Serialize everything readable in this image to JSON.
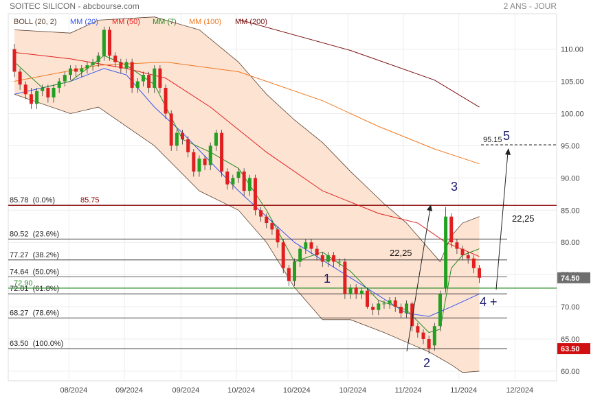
{
  "chart_data": {
    "type": "candlestick",
    "title": "SOITEC SILICON - abcbourse.com",
    "subtitle": "2 ANS - JOUR",
    "up_color": "#22a022",
    "down_color": "#e02020",
    "x": [
      0,
      1,
      2,
      3,
      4,
      5,
      6,
      7,
      8,
      9,
      10,
      11,
      12,
      13,
      14,
      15,
      16,
      17,
      18,
      19,
      20,
      21,
      22,
      23,
      24,
      25,
      26,
      27,
      28,
      29,
      30,
      31,
      32,
      33,
      34,
      35,
      36,
      37,
      38,
      39,
      40,
      41,
      42,
      43,
      44,
      45,
      46,
      47,
      48,
      49,
      50,
      51,
      52,
      53,
      54,
      55,
      56,
      57,
      58,
      59,
      60,
      61,
      62,
      63,
      64,
      65,
      66,
      67,
      68,
      69,
      70,
      71,
      72,
      73,
      74,
      75,
      76,
      77,
      78,
      79,
      80,
      81,
      82,
      83
    ],
    "open": [
      110,
      106.5,
      104.5,
      103,
      101.5,
      103.5,
      104,
      102.5,
      104,
      105,
      106,
      107,
      106.5,
      107,
      107.5,
      108,
      109,
      113,
      109,
      108,
      107,
      108,
      104,
      105,
      106,
      104,
      107,
      104,
      100,
      95,
      97,
      96,
      94,
      91,
      93,
      92,
      95,
      97,
      91,
      89,
      90,
      91,
      88,
      90,
      85,
      84,
      83,
      82,
      80,
      76,
      74,
      77,
      79,
      80,
      79,
      78,
      77,
      78,
      77,
      77,
      72,
      73,
      72,
      72.5,
      70,
      69.5,
      70.5,
      70.5,
      71,
      70,
      69,
      70.5,
      67,
      66,
      65,
      64,
      67,
      73,
      84,
      80,
      79,
      78,
      77.5,
      76
    ],
    "high": [
      110.8,
      107,
      105,
      104,
      104,
      104.5,
      104.5,
      104.5,
      105.5,
      106.5,
      107.5,
      107.5,
      107.5,
      108,
      108.5,
      109.5,
      113.5,
      113.5,
      109.5,
      108.5,
      108.5,
      108.5,
      105.5,
      106.5,
      106.5,
      107.5,
      107.5,
      104.5,
      100.5,
      97.5,
      97.5,
      96.5,
      94.5,
      93.5,
      93.5,
      95.5,
      97.5,
      97.5,
      91.5,
      90.5,
      91.5,
      91.5,
      90.5,
      90.5,
      85.5,
      84.5,
      83.5,
      82.5,
      80.5,
      76.5,
      77.5,
      79.5,
      80.5,
      80.5,
      79.5,
      78.5,
      78.5,
      78.5,
      77.5,
      77.5,
      73.5,
      73.5,
      73,
      73,
      70.5,
      71,
      71,
      71.5,
      71.5,
      70.5,
      71,
      70.8,
      67.5,
      66.5,
      65.5,
      67.5,
      72.5,
      85.5,
      84.5,
      80.5,
      79.5,
      78.5,
      78,
      76.5
    ],
    "low": [
      105.7,
      103.7,
      102.2,
      100.7,
      100.7,
      102.7,
      101.7,
      101.7,
      103.2,
      104.2,
      105.2,
      105.7,
      105.7,
      106.2,
      106.7,
      107.2,
      108.2,
      108.2,
      107.2,
      106.2,
      106.2,
      103.2,
      103.2,
      104.2,
      103.2,
      103.2,
      103.2,
      99.2,
      94.2,
      94.2,
      95.2,
      93.2,
      90.2,
      90.2,
      91.2,
      91.2,
      94.2,
      90.2,
      88.2,
      88.2,
      89.2,
      87.2,
      87.2,
      84.2,
      83.2,
      82.2,
      81.2,
      79.2,
      75.2,
      73.2,
      73.2,
      76.2,
      78.2,
      78.2,
      77.2,
      76.2,
      76.2,
      76.2,
      76.2,
      71.2,
      71.2,
      71.2,
      71.2,
      69.7,
      68.7,
      68.7,
      69.7,
      69.7,
      69.2,
      68.2,
      68.2,
      66.2,
      65.2,
      64.2,
      62.7,
      63.2,
      66.2,
      72.2,
      79.2,
      78.2,
      77.2,
      76.7,
      75.2,
      73.7
    ],
    "close": [
      106.5,
      104.5,
      103,
      101.5,
      103.5,
      104,
      102.5,
      104,
      105,
      106,
      107,
      106.5,
      107,
      107.5,
      108,
      109,
      113,
      109,
      108,
      107,
      108,
      104,
      105,
      106,
      104,
      107,
      104,
      100,
      95,
      97,
      96,
      94,
      91,
      93,
      92,
      95,
      97,
      91,
      89,
      90,
      91,
      88,
      90,
      85,
      84,
      83,
      82,
      80,
      76,
      74,
      77,
      79,
      80,
      79,
      78,
      77,
      78,
      77,
      77,
      72,
      73,
      72,
      72.5,
      70,
      69.5,
      70.5,
      70.5,
      71,
      70,
      69,
      70.5,
      67,
      66,
      65,
      63.5,
      67,
      72,
      84,
      80,
      79,
      78,
      77.5,
      76,
      74.5
    ],
    "bollinger": {
      "name": "BOLL (20, 2)",
      "color": "#5a4030",
      "fill": "#fde3d2",
      "x": [
        0,
        10,
        15,
        25,
        33,
        40,
        45,
        50,
        55,
        60,
        66,
        70,
        74,
        76,
        78,
        80,
        83
      ],
      "upper": [
        113,
        112.5,
        114.5,
        115,
        113,
        108,
        103,
        99,
        95.5,
        91,
        86,
        83,
        79,
        77,
        81,
        83,
        84
      ],
      "lower": [
        103,
        100,
        101,
        95,
        88,
        85,
        80,
        73,
        68,
        68,
        66,
        64.5,
        63,
        62,
        61,
        59.8,
        60
      ]
    },
    "series": [
      {
        "name": "MM (20)",
        "color": "#3355ee",
        "x": [
          0,
          10,
          16,
          20,
          25,
          30,
          40,
          50,
          60,
          70,
          74,
          78,
          83
        ],
        "values": [
          103,
          105,
          107,
          106,
          101,
          97,
          88,
          80,
          74.5,
          69,
          68.5,
          70,
          72
        ]
      },
      {
        "name": "MM (50)",
        "color": "#e02020",
        "x": [
          0,
          10,
          20,
          27,
          35,
          45,
          55,
          65,
          72,
          77,
          83
        ],
        "values": [
          109.5,
          108.5,
          107,
          105.5,
          101,
          94,
          88,
          84.5,
          83,
          80,
          77.8
        ]
      },
      {
        "name": "MM (7)",
        "color": "#228b22",
        "x": [
          0,
          5,
          10,
          16,
          20,
          25,
          30,
          35,
          40,
          45,
          50,
          55,
          60,
          65,
          70,
          74,
          76,
          78,
          80,
          83
        ],
        "values": [
          108,
          104,
          105,
          109,
          107.5,
          104.5,
          96,
          94,
          91.5,
          85,
          77,
          78.5,
          75.5,
          71,
          69.5,
          66,
          66.5,
          76,
          78,
          79
        ]
      },
      {
        "name": "MM (100)",
        "color": "#f07820",
        "x": [
          0,
          15,
          27,
          40,
          55,
          65,
          75,
          83
        ],
        "values": [
          105,
          107.5,
          108,
          106.5,
          102,
          98,
          94.5,
          92.2
        ]
      },
      {
        "name": "MM (200)",
        "color": "#7a1010",
        "x": [
          40,
          60,
          75,
          83
        ],
        "values": [
          114.6,
          109.8,
          105.2,
          101
        ]
      }
    ],
    "levels": [
      {
        "value": 85.78,
        "label": "85.78  (0.0%)"
      },
      {
        "value": 80.52,
        "label": "80.52  (23.6%)"
      },
      {
        "value": 77.27,
        "label": "77.27  (38.2%)"
      },
      {
        "value": 74.64,
        "label": "74.64  (50.0%)"
      },
      {
        "value": 72.01,
        "label": "72.01  (61.8%)"
      },
      {
        "value": 68.27,
        "label": "68.27  (78.6%)"
      },
      {
        "value": 63.5,
        "label": "63.50  (100.0%)"
      }
    ],
    "lines": [
      {
        "value": 85.75,
        "label": "85.75",
        "color": "#8b0000"
      },
      {
        "value": 72.9,
        "label": "72.90",
        "color": "#228b22"
      }
    ],
    "target": {
      "value": 95.15,
      "label": "95.15"
    },
    "price_tags": [
      {
        "value": 74.5,
        "label": "74.50",
        "color": "#6e6e6e"
      },
      {
        "value": 63.5,
        "label": "63.50",
        "color": "#d01010"
      }
    ],
    "annotations": [
      "1",
      "2",
      "3",
      "4 +",
      "5",
      "22,25",
      "22,25"
    ],
    "xlim": [
      -1.1,
      96.8
    ],
    "xticks": [
      {
        "value": 10.6,
        "label": "08/2024"
      },
      {
        "value": 20.5,
        "label": "09/2024"
      },
      {
        "value": 30.6,
        "label": "09/2024"
      },
      {
        "value": 40.5,
        "label": "10/2024"
      },
      {
        "value": 50.4,
        "label": "10/2024"
      },
      {
        "value": 60.4,
        "label": "10/2024"
      },
      {
        "value": 70.3,
        "label": "11/2024"
      },
      {
        "value": 80.2,
        "label": "11/2024"
      },
      {
        "value": 90.2,
        "label": "12/2024"
      }
    ],
    "ylim": [
      58.5,
      115.5
    ],
    "yticks": [
      {
        "value": 60,
        "label": "60.00"
      },
      {
        "value": 65,
        "label": "65.00"
      },
      {
        "value": 70,
        "label": "70.00"
      },
      {
        "value": 75,
        "label": "75.00"
      },
      {
        "value": 80,
        "label": "80.00"
      },
      {
        "value": 85,
        "label": "85.00"
      },
      {
        "value": 90,
        "label": "90.00"
      },
      {
        "value": 95,
        "label": "95.00"
      },
      {
        "value": 100,
        "label": "100.00"
      },
      {
        "value": 105,
        "label": "105.00"
      },
      {
        "value": 110,
        "label": "110.00"
      }
    ],
    "grid": true
  }
}
